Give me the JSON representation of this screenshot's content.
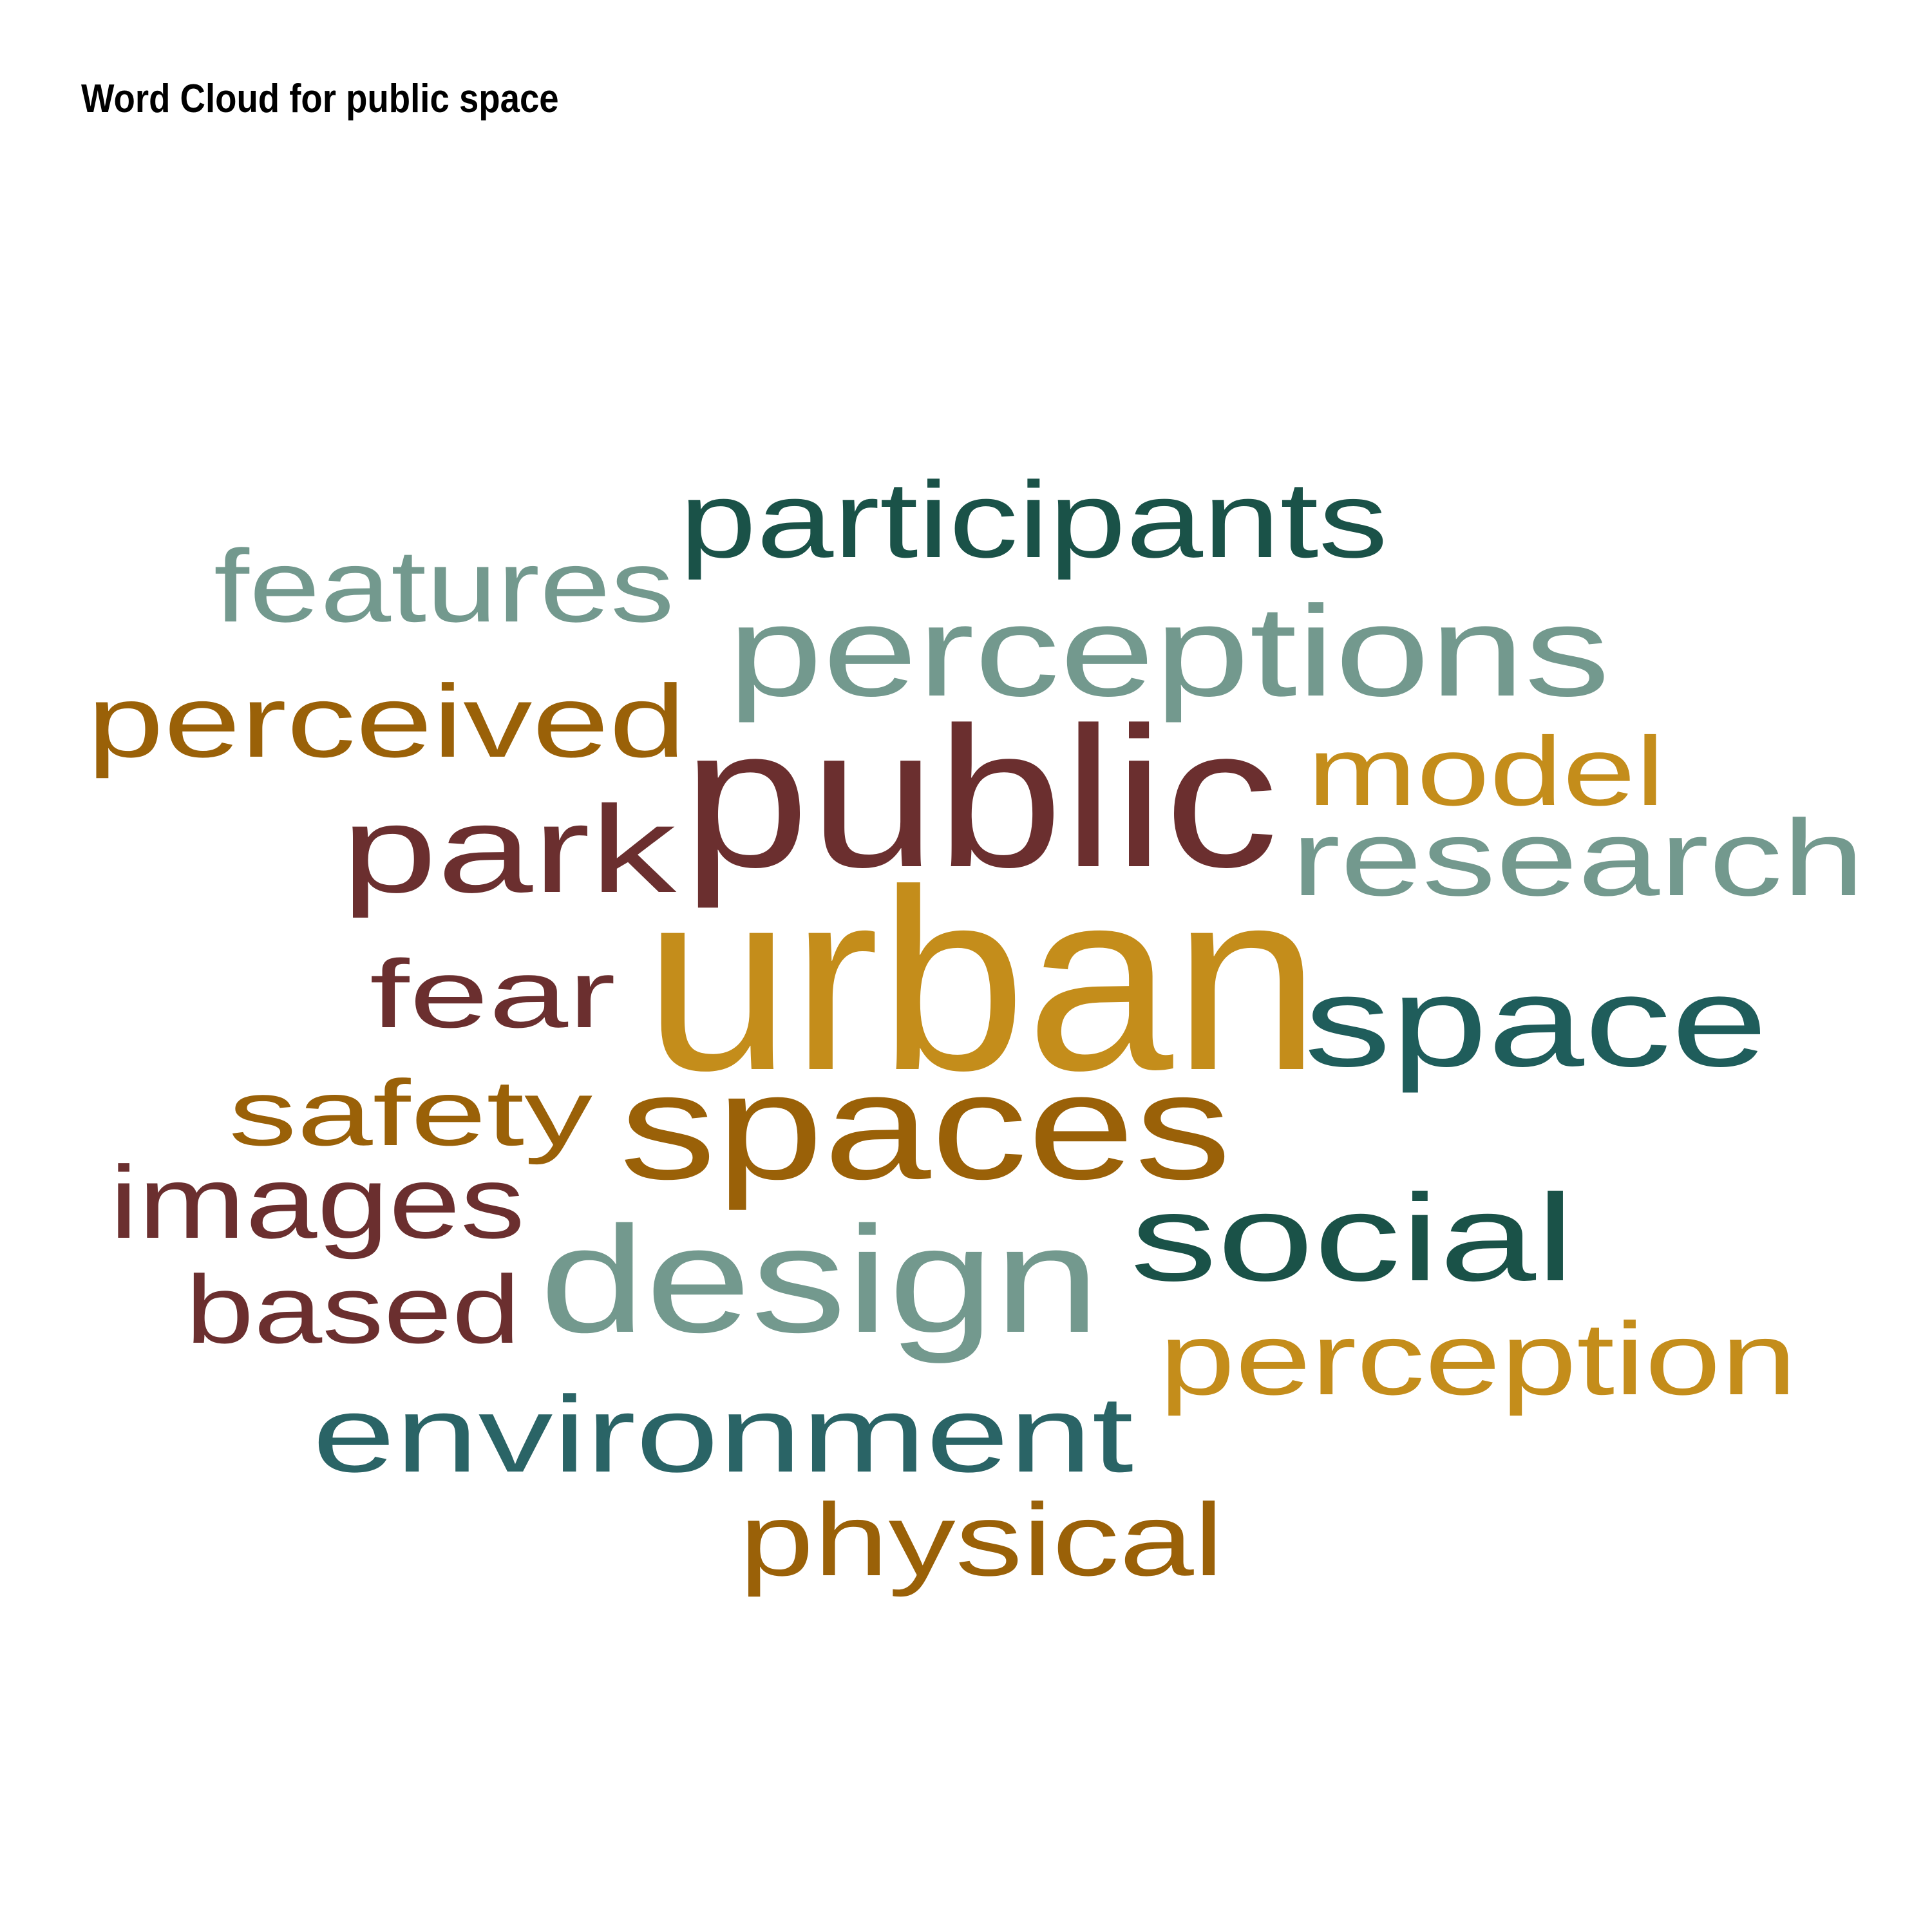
{
  "chart_data": {
    "type": "wordcloud",
    "title": "Word Cloud for public space",
    "words": [
      {
        "text": "urban",
        "color": "#C48D1B"
      },
      {
        "text": "public",
        "color": "#6B2F2F"
      },
      {
        "text": "spaces",
        "color": "#9A6108"
      },
      {
        "text": "design",
        "color": "#73998E"
      },
      {
        "text": "space",
        "color": "#1F5D5B"
      },
      {
        "text": "perceptions",
        "color": "#73998E"
      },
      {
        "text": "social",
        "color": "#1A5248"
      },
      {
        "text": "park",
        "color": "#6B2F2F"
      },
      {
        "text": "research",
        "color": "#73998E"
      },
      {
        "text": "participants",
        "color": "#1A5248"
      },
      {
        "text": "environment",
        "color": "#2A6466"
      },
      {
        "text": "perceived",
        "color": "#9A6108"
      },
      {
        "text": "perception",
        "color": "#C48D1B"
      },
      {
        "text": "features",
        "color": "#73998E"
      },
      {
        "text": "images",
        "color": "#6B2F2F"
      },
      {
        "text": "physical",
        "color": "#9A6108"
      },
      {
        "text": "model",
        "color": "#C48D1B"
      },
      {
        "text": "based",
        "color": "#6B2F2F"
      },
      {
        "text": "fear",
        "color": "#6B2F2F"
      },
      {
        "text": "safety",
        "color": "#9A6108"
      }
    ]
  }
}
